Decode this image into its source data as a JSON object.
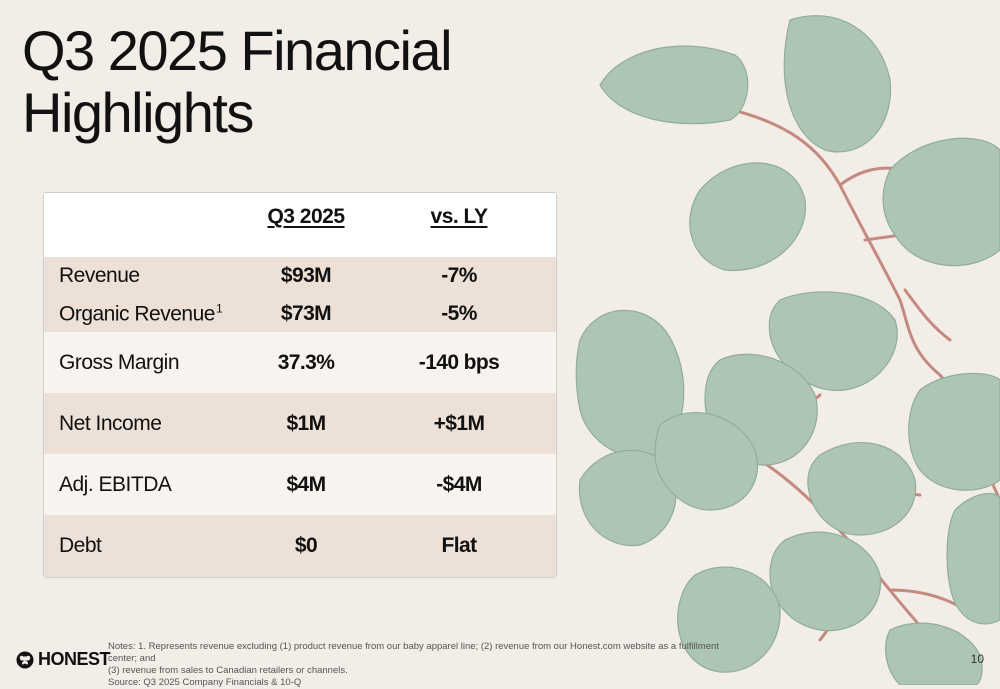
{
  "title": {
    "line1": "Q3 2025 Financial",
    "line2": "Highlights"
  },
  "table": {
    "headers": {
      "col1": "Q3 2025",
      "col2": "vs. LY"
    },
    "rows": [
      {
        "label": "Revenue",
        "value": "$93M",
        "change": "-7%"
      },
      {
        "label": "Organic Revenue",
        "superscript": "1",
        "value": "$73M",
        "change": "-5%"
      },
      {
        "label": "Gross Margin",
        "value": "37.3%",
        "change": "-140 bps"
      },
      {
        "label": "Net Income",
        "value": "$1M",
        "change": "+$1M"
      },
      {
        "label": "Adj. EBITDA",
        "value": "$4M",
        "change": "-$4M"
      },
      {
        "label": "Debt",
        "value": "$0",
        "change": "Flat"
      }
    ]
  },
  "footer": {
    "logo_text": "HONEST",
    "logo_icon": "butterfly-icon",
    "notes_line1": "Notes: 1. Represents revenue excluding (1) product revenue from our baby apparel line; (2) revenue from our Honest.com website as a fulfillment center; and",
    "notes_line2": "(3) revenue from sales to Canadian retailers or channels.",
    "source": "Source: Q3 2025 Company Financials & 10-Q",
    "page_number": "10"
  },
  "colors": {
    "background": "#f2ede7",
    "row_tan": "#ede0d6",
    "row_cream": "#f7f3ee",
    "leaf": "#aec5b4",
    "stem": "#c48a82"
  }
}
